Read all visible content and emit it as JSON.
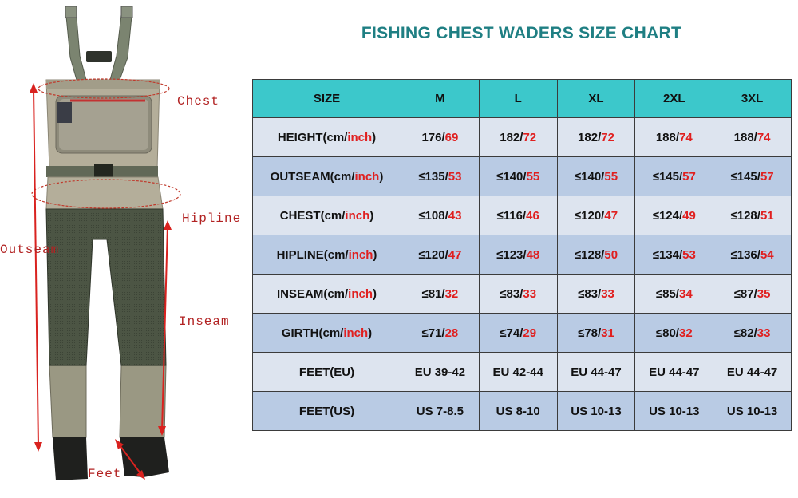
{
  "title": "FISHING CHEST WADERS SIZE CHART",
  "colors": {
    "title": "#1f7f83",
    "header_bg": "#3cc8cb",
    "row_light": "#dde4ef",
    "row_dark": "#b9cbe4",
    "accent_red": "#e01f1f",
    "measure_label": "#b22222"
  },
  "measure_labels": {
    "chest": "Chest",
    "hipline": "Hipline",
    "outseam": "Outseam",
    "inseam": "Inseam",
    "feet": "Feet"
  },
  "header": [
    "SIZE",
    "M",
    "L",
    "XL",
    "2XL",
    "3XL"
  ],
  "rows": [
    {
      "label": "HEIGHT(cm/",
      "unit": "inch",
      "close": ")",
      "cells": [
        [
          "176/",
          "69"
        ],
        [
          "182/",
          "72"
        ],
        [
          "182/",
          "72"
        ],
        [
          "188/",
          "74"
        ],
        [
          "188/",
          "74"
        ]
      ]
    },
    {
      "label": "OUTSEAM(cm/",
      "unit": "inch",
      "close": ")",
      "cells": [
        [
          "≤135/",
          "53"
        ],
        [
          "≤140/",
          "55"
        ],
        [
          "≤140/",
          "55"
        ],
        [
          "≤145/",
          "57"
        ],
        [
          "≤145/",
          "57"
        ]
      ]
    },
    {
      "label": "CHEST(cm/",
      "unit": "inch",
      "close": ")",
      "cells": [
        [
          "≤108/",
          "43"
        ],
        [
          "≤116/",
          "46"
        ],
        [
          "≤120/",
          "47"
        ],
        [
          "≤124/",
          "49"
        ],
        [
          "≤128/",
          "51"
        ]
      ]
    },
    {
      "label": "HIPLINE(cm/",
      "unit": "inch",
      "close": ")",
      "cells": [
        [
          "≤120/",
          "47"
        ],
        [
          "≤123/",
          "48"
        ],
        [
          "≤128/",
          "50"
        ],
        [
          "≤134/",
          "53"
        ],
        [
          "≤136/",
          "54"
        ]
      ]
    },
    {
      "label": "INSEAM(cm/",
      "unit": "inch",
      "close": ")",
      "cells": [
        [
          "≤81/",
          "32"
        ],
        [
          "≤83/",
          "33"
        ],
        [
          "≤83/",
          "33"
        ],
        [
          "≤85/",
          "34"
        ],
        [
          "≤87/",
          "35"
        ]
      ]
    },
    {
      "label": "GIRTH(cm/",
      "unit": "inch",
      "close": ")",
      "cells": [
        [
          "≤71/",
          "28"
        ],
        [
          "≤74/",
          "29"
        ],
        [
          "≤78/",
          "31"
        ],
        [
          "≤80/",
          "32"
        ],
        [
          "≤82/",
          "33"
        ]
      ]
    },
    {
      "label": "FEET(EU)",
      "unit": "",
      "close": "",
      "cells": [
        [
          "EU 39-42",
          ""
        ],
        [
          "EU 42-44",
          ""
        ],
        [
          "EU 44-47",
          ""
        ],
        [
          "EU 44-47",
          ""
        ],
        [
          "EU 44-47",
          ""
        ]
      ]
    },
    {
      "label": "FEET(US)",
      "unit": "",
      "close": "",
      "cells": [
        [
          "US 7-8.5",
          ""
        ],
        [
          "US 8-10",
          ""
        ],
        [
          "US 10-13",
          ""
        ],
        [
          "US 10-13",
          ""
        ],
        [
          "US 10-13",
          ""
        ]
      ]
    }
  ]
}
